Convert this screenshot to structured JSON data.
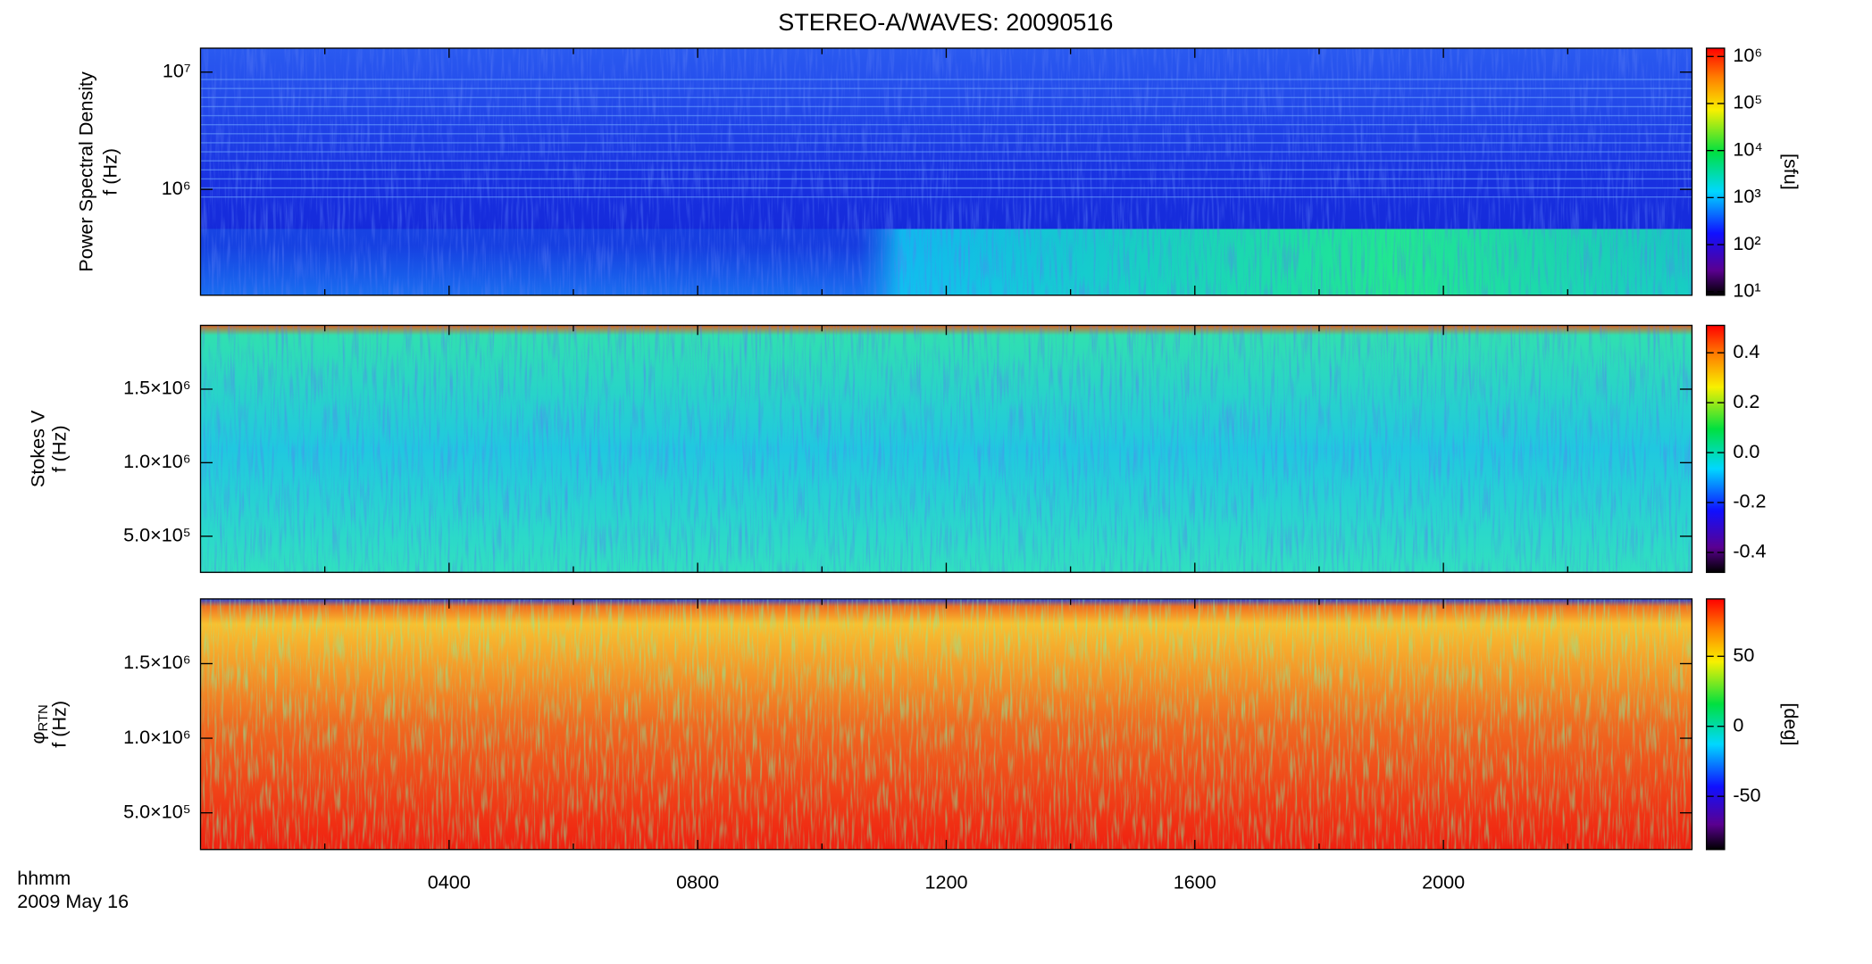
{
  "chart_data": [
    {
      "type": "heatmap",
      "title": "STEREO-A/WAVES: 20090516",
      "ylabel": [
        "Power Spectral Density",
        "f (Hz)"
      ],
      "ylog": true,
      "ylim": [
        125000,
        16000000
      ],
      "yticks": [
        {
          "value": 1000000,
          "label": "10⁶"
        },
        {
          "value": 10000000,
          "label": "10⁷"
        }
      ],
      "colorbar": {
        "label": "[sfu]",
        "log": true,
        "lim": [
          8.4,
          1500000
        ],
        "ticks": [
          {
            "value": 10,
            "label": "10¹"
          },
          {
            "value": 100,
            "label": "10²"
          },
          {
            "value": 1000,
            "label": "10³"
          },
          {
            "value": 10000,
            "label": "10⁴"
          },
          {
            "value": 100000,
            "label": "10⁵"
          },
          {
            "value": 1000000,
            "label": "10⁶"
          }
        ]
      }
    },
    {
      "type": "heatmap",
      "ylabel": [
        "Stokes V",
        "f (Hz)"
      ],
      "ylog": false,
      "ylim": [
        254000,
        1934000
      ],
      "yticks": [
        {
          "value": 500000,
          "label": "5.0×10⁵"
        },
        {
          "value": 1000000,
          "label": "1.0×10⁶"
        },
        {
          "value": 1500000,
          "label": "1.5×10⁶"
        }
      ],
      "colorbar": {
        "log": false,
        "lim": [
          -0.48,
          0.51
        ],
        "ticks": [
          -0.4,
          -0.2,
          {
            "value": 0,
            "label": "0.0"
          },
          0.2,
          0.4
        ]
      }
    },
    {
      "type": "heatmap",
      "ylabel": [
        "φ",
        "f (Hz)"
      ],
      "ylabel_subscript": "RTN",
      "ylog": false,
      "ylim": [
        254000,
        1934000
      ],
      "yticks": [
        {
          "value": 500000,
          "label": "5.0×10⁵"
        },
        {
          "value": 1000000,
          "label": "1.0×10⁶"
        },
        {
          "value": 1500000,
          "label": "1.5×10⁶"
        }
      ],
      "colorbar": {
        "label": "[deg]",
        "log": false,
        "lim": [
          -88,
          91
        ],
        "ticks": [
          -50,
          0,
          50
        ]
      },
      "xlabel": "hhmm",
      "date": "2009 May 16",
      "xlim": [
        0,
        24
      ],
      "xticks": [
        {
          "value": 4,
          "label": "0400"
        },
        {
          "value": 8,
          "label": "0800"
        },
        {
          "value": 12,
          "label": "1200"
        },
        {
          "value": 16,
          "label": "1600"
        },
        {
          "value": 20,
          "label": "2000"
        }
      ],
      "xminor": [
        2,
        6,
        10,
        14,
        18,
        22
      ]
    }
  ]
}
